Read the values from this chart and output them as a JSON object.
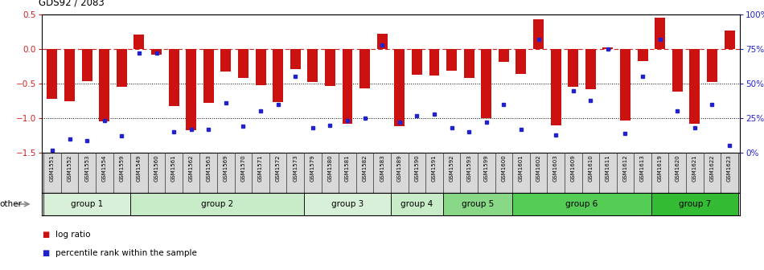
{
  "title": "GDS92 / 2083",
  "samples": [
    "GSM1551",
    "GSM1552",
    "GSM1553",
    "GSM1554",
    "GSM1559",
    "GSM1549",
    "GSM1560",
    "GSM1561",
    "GSM1562",
    "GSM1563",
    "GSM1569",
    "GSM1570",
    "GSM1571",
    "GSM1572",
    "GSM1573",
    "GSM1579",
    "GSM1580",
    "GSM1581",
    "GSM1582",
    "GSM1583",
    "GSM1589",
    "GSM1590",
    "GSM1591",
    "GSM1592",
    "GSM1593",
    "GSM1599",
    "GSM1600",
    "GSM1601",
    "GSM1602",
    "GSM1603",
    "GSM1609",
    "GSM1610",
    "GSM1611",
    "GSM1612",
    "GSM1613",
    "GSM1619",
    "GSM1620",
    "GSM1621",
    "GSM1622",
    "GSM1623"
  ],
  "log_ratio": [
    -0.72,
    -0.75,
    -0.46,
    -1.05,
    -0.55,
    0.21,
    -0.08,
    -0.83,
    -1.18,
    -0.78,
    -0.32,
    -0.42,
    -0.52,
    -0.77,
    -0.29,
    -0.48,
    -0.53,
    -1.08,
    -0.57,
    0.22,
    -1.12,
    -0.37,
    -0.38,
    -0.31,
    -0.42,
    -1.0,
    -0.19,
    -0.36,
    0.43,
    -1.1,
    -0.55,
    -0.58,
    0.02,
    -1.04,
    -0.17,
    0.45,
    -0.62,
    -1.08,
    -0.48,
    0.27
  ],
  "percentile": [
    2,
    10,
    9,
    23,
    12,
    72,
    72,
    15,
    17,
    17,
    36,
    19,
    30,
    35,
    55,
    18,
    20,
    23,
    25,
    78,
    22,
    27,
    28,
    18,
    15,
    22,
    35,
    17,
    82,
    13,
    45,
    38,
    75,
    14,
    55,
    82,
    30,
    18,
    35,
    5
  ],
  "groups": [
    {
      "name": "group 1",
      "start": 0,
      "end": 5,
      "color": "#d8f0d8"
    },
    {
      "name": "group 2",
      "start": 5,
      "end": 15,
      "color": "#c8ecc8"
    },
    {
      "name": "group 3",
      "start": 15,
      "end": 20,
      "color": "#d8f0d8"
    },
    {
      "name": "group 4",
      "start": 20,
      "end": 23,
      "color": "#c8ecc8"
    },
    {
      "name": "group 5",
      "start": 23,
      "end": 27,
      "color": "#88d888"
    },
    {
      "name": "group 6",
      "start": 27,
      "end": 35,
      "color": "#55cc55"
    },
    {
      "name": "group 7",
      "start": 35,
      "end": 40,
      "color": "#33bb33"
    }
  ],
  "ylim_left": [
    -1.5,
    0.5
  ],
  "ylim_right": [
    0,
    100
  ],
  "bar_color": "#cc1111",
  "dot_color": "#2222cc",
  "bg_color": "#ffffff",
  "tick_bg_color": "#d8d8d8",
  "ref_line_color": "#cc2222",
  "other_arrow_color": "#888888",
  "figsize": [
    9.5,
    3.36
  ],
  "dpi": 100
}
